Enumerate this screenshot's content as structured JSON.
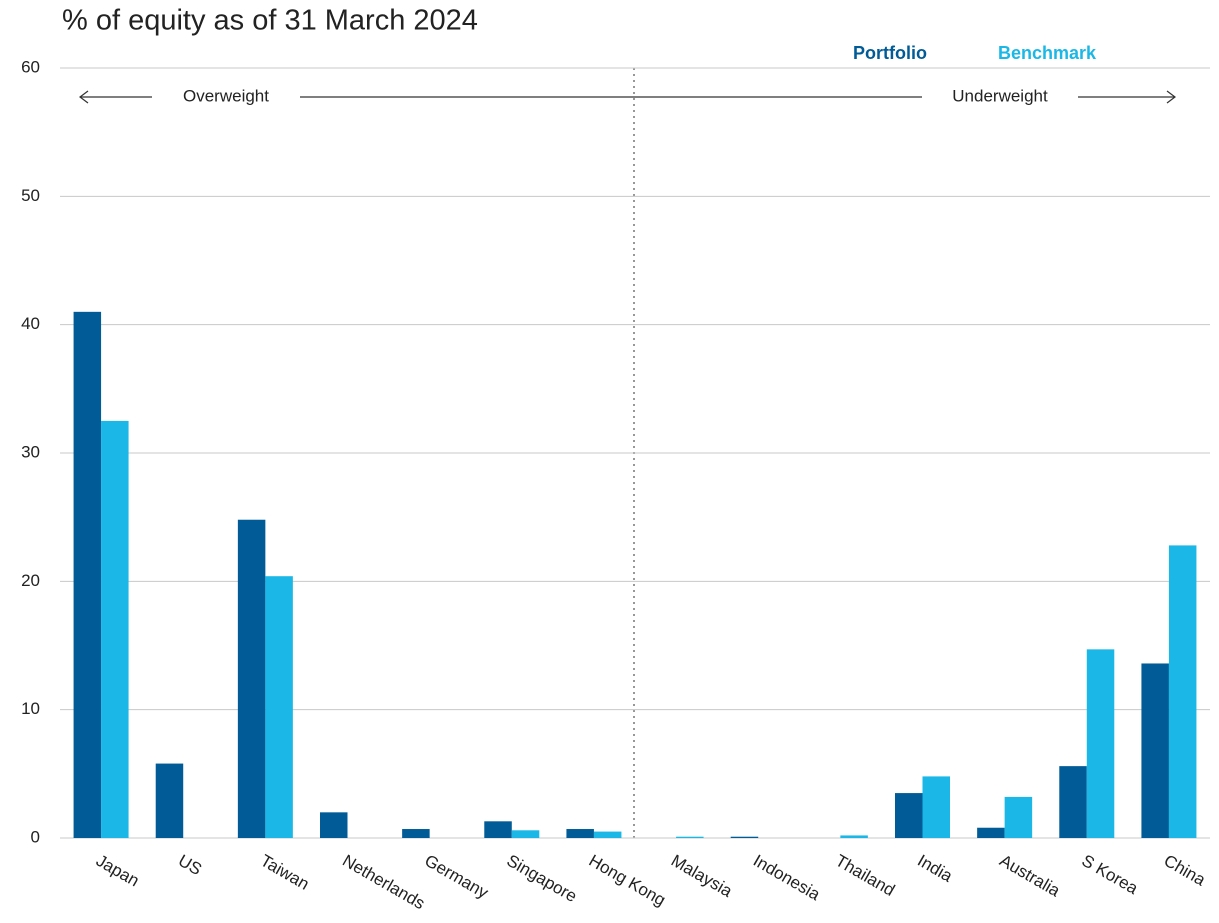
{
  "chart_data": {
    "type": "bar",
    "title": "% of equity as of 31 March 2024",
    "categories": [
      "Japan",
      "US",
      "Taiwan",
      "Netherlands",
      "Germany",
      "Singapore",
      "Hong Kong",
      "Malaysia",
      "Indonesia",
      "Thailand",
      "India",
      "Australia",
      "S Korea",
      "China"
    ],
    "series": [
      {
        "name": "Portfolio",
        "color": "#005b96",
        "values": [
          41.0,
          5.8,
          24.8,
          2.0,
          0.7,
          1.3,
          0.7,
          0.0,
          0.1,
          0.0,
          3.5,
          0.8,
          5.6,
          13.6
        ]
      },
      {
        "name": "Benchmark",
        "color": "#1bb7e6",
        "values": [
          32.5,
          0.0,
          20.4,
          0.0,
          0.0,
          0.6,
          0.5,
          0.1,
          0.0,
          0.2,
          4.8,
          3.2,
          14.7,
          22.8
        ]
      }
    ],
    "annotations": [
      "Overweight",
      "Underweight"
    ],
    "ylim": [
      0,
      60
    ],
    "yticks": [
      0,
      10,
      20,
      30,
      40,
      50,
      60
    ],
    "grid": true,
    "legend": "top-right"
  }
}
